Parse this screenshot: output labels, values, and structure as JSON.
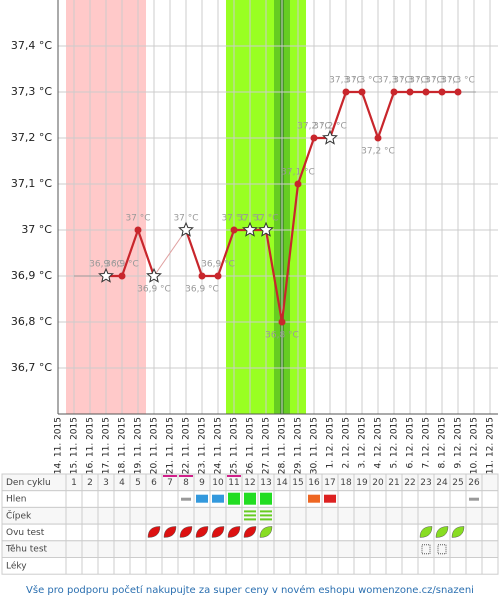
{
  "chart_data": {
    "type": "line",
    "categories": [
      "14. 11. 2015",
      "15. 11. 2015",
      "16. 11. 2015",
      "17. 11. 2015",
      "18. 11. 2015",
      "19. 11. 2015",
      "20. 11. 2015",
      "21. 11. 2015",
      "22. 11. 2015",
      "23. 11. 2015",
      "24. 11. 2015",
      "25. 11. 2015",
      "26. 11. 2015",
      "27. 11. 2015",
      "28. 11. 2015",
      "29. 11. 2015",
      "30. 11. 2015",
      "1. 12. 2015",
      "2. 12. 2015",
      "3. 12. 2015",
      "4. 12. 2015",
      "5. 12. 2015",
      "6. 12. 2015",
      "7. 12. 2015",
      "8. 12. 2015",
      "9. 12. 2015",
      "10. 12. 2015",
      "11. 12. 2015"
    ],
    "series": [
      {
        "color": "#c8262c",
        "values": [
          null,
          null,
          null,
          36.9,
          36.9,
          37.0,
          36.9,
          null,
          37.0,
          36.9,
          36.9,
          37.0,
          37.0,
          37.0,
          36.8,
          37.1,
          37.2,
          37.2,
          37.3,
          37.3,
          37.2,
          37.3,
          37.3,
          37.3,
          37.3,
          37.3,
          null,
          null
        ],
        "value_labels": [
          null,
          null,
          null,
          "36,9 °C",
          "36,9 °C",
          "37 °C",
          "36,9 °C",
          null,
          "37 °C",
          "36,9 °C",
          "36,9 °C",
          "37 °C",
          "37 °C",
          "37 °C",
          "36,8 °C",
          "37,1 °C",
          "37,2 °C",
          "37,2 °C",
          "37,3 °C",
          "37,3 °C",
          "37,2 °C",
          "37,3 °C",
          "37,3 °C",
          "37,3 °C",
          "37,3 °C",
          "37,3 °C",
          null,
          null
        ],
        "markers": [
          null,
          null,
          null,
          "star",
          "dot",
          "dot",
          "star",
          null,
          "star",
          "dot",
          "dot",
          "dot",
          "star",
          "star",
          "dot",
          "dot",
          "dot",
          "star",
          "dot",
          "dot",
          "dot",
          "dot",
          "dot",
          "dot",
          "dot",
          "dot",
          null,
          null
        ]
      }
    ],
    "ylim": [
      36.6,
      37.5
    ],
    "yticks": [
      {
        "value": 36.7,
        "label": "36,7 °C"
      },
      {
        "value": 36.8,
        "label": "36,8 °C"
      },
      {
        "value": 36.9,
        "label": "36,9 °C"
      },
      {
        "value": 37.0,
        "label": "37 °C"
      },
      {
        "value": 37.1,
        "label": "37,1 °C"
      },
      {
        "value": 37.2,
        "label": "37,2 °C"
      },
      {
        "value": 37.3,
        "label": "37,3 °C"
      },
      {
        "value": 37.4,
        "label": "37,4 °C"
      }
    ],
    "grid": true
  },
  "table": {
    "row_labels": [
      "Den cyklu",
      "Hlen",
      "Čípek",
      "Ovu test",
      "Těhu test",
      "Léky"
    ],
    "cycle_days": [
      1,
      2,
      3,
      4,
      5,
      6,
      7,
      8,
      9,
      10,
      11,
      12,
      13,
      14,
      15,
      16,
      17,
      18,
      19,
      20,
      21,
      22,
      23,
      24,
      25,
      26
    ]
  },
  "footer": "Vše pro podporu početí nakupujte za super ceny v novém eshopu womenzone.cz/snazeni"
}
